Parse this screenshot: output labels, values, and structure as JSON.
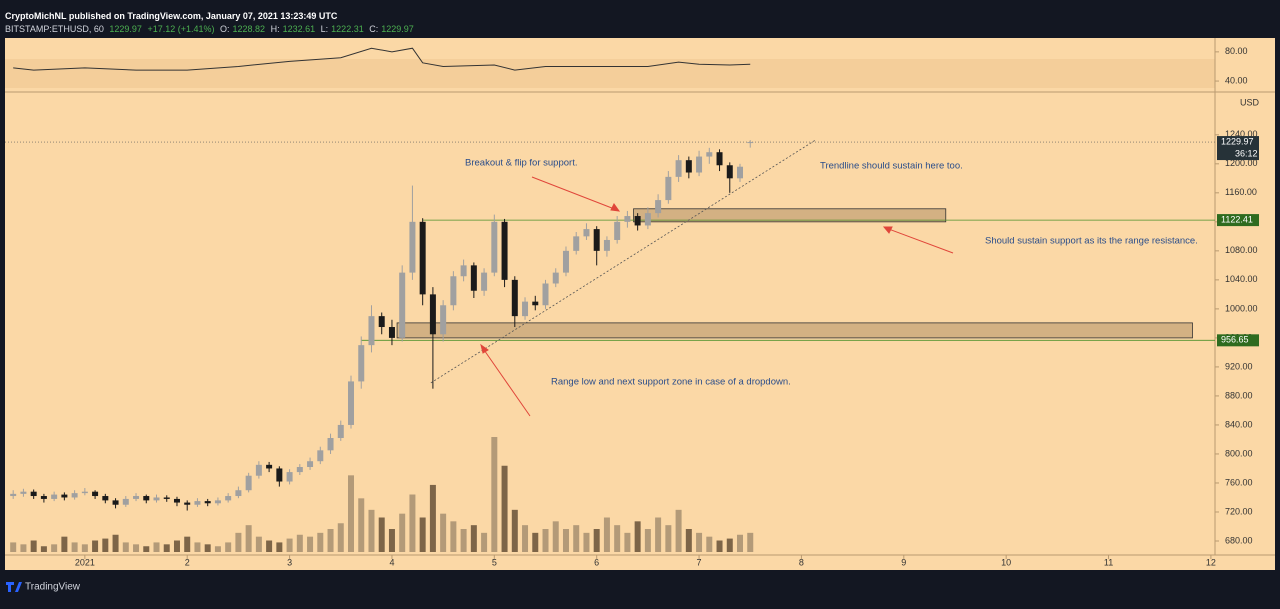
{
  "header": {
    "publisher": "CryptoMichNL published on TradingView.com, January 07, 2021 13:23:49 UTC",
    "symbol": "BITSTAMP:ETHUSD, 60",
    "last": "1229.97",
    "change": "+17.12 (+1.41%)",
    "ohlc": [
      {
        "label": "O:",
        "value": "1228.82"
      },
      {
        "label": "H:",
        "value": "1232.61"
      },
      {
        "label": "L:",
        "value": "1222.31"
      },
      {
        "label": "C:",
        "value": "1229.97"
      }
    ]
  },
  "footer": "TradingView",
  "chart_data": {
    "type": "candlestick",
    "x": [
      0.3,
      0.4,
      0.5,
      0.6,
      0.7,
      0.8,
      0.9,
      1.0,
      1.1,
      1.2,
      1.3,
      1.4,
      1.5,
      1.6,
      1.7,
      1.8,
      1.9,
      2.0,
      2.1,
      2.2,
      2.3,
      2.4,
      2.5,
      2.6,
      2.7,
      2.8,
      2.9,
      3.0,
      3.1,
      3.2,
      3.3,
      3.4,
      3.5,
      3.6,
      3.7,
      3.8,
      3.9,
      4.0,
      4.1,
      4.2,
      4.3,
      4.4,
      4.5,
      4.6,
      4.7,
      4.8,
      4.9,
      5.0,
      5.1,
      5.2,
      5.3,
      5.4,
      5.5,
      5.6,
      5.7,
      5.8,
      5.9,
      6.0,
      6.1,
      6.2,
      6.3,
      6.4,
      6.5,
      6.6,
      6.7,
      6.8,
      6.9,
      7.0,
      7.1,
      7.2,
      7.3,
      7.4,
      7.5
    ],
    "open": [
      742,
      745,
      748,
      742,
      738,
      744,
      740,
      746,
      748,
      742,
      736,
      730,
      738,
      742,
      736,
      740,
      738,
      733,
      730,
      735,
      732,
      736,
      742,
      750,
      770,
      785,
      780,
      762,
      775,
      782,
      790,
      805,
      822,
      840,
      900,
      950,
      990,
      975,
      960,
      1050,
      1120,
      1020,
      965,
      1005,
      1045,
      1060,
      1025,
      1050,
      1120,
      1040,
      990,
      1010,
      1005,
      1035,
      1050,
      1080,
      1100,
      1110,
      1080,
      1095,
      1120,
      1128,
      1115,
      1132,
      1150,
      1182,
      1205,
      1188,
      1210,
      1216,
      1198,
      1180,
      1228.82
    ],
    "high": [
      750,
      752,
      751,
      745,
      748,
      747,
      750,
      753,
      750,
      745,
      739,
      742,
      746,
      744,
      744,
      743,
      741,
      736,
      739,
      738,
      740,
      746,
      755,
      774,
      790,
      789,
      783,
      779,
      786,
      795,
      810,
      828,
      846,
      908,
      962,
      1005,
      995,
      985,
      1060,
      1170,
      1125,
      1030,
      1012,
      1052,
      1068,
      1064,
      1056,
      1130,
      1124,
      1045,
      1016,
      1018,
      1040,
      1056,
      1086,
      1106,
      1118,
      1114,
      1100,
      1128,
      1135,
      1132,
      1140,
      1158,
      1190,
      1212,
      1210,
      1218,
      1222,
      1220,
      1202,
      1200,
      1232.61
    ],
    "low": [
      738,
      741,
      738,
      733,
      735,
      736,
      737,
      743,
      738,
      732,
      725,
      727,
      735,
      732,
      733,
      734,
      728,
      722,
      727,
      728,
      729,
      733,
      739,
      747,
      766,
      775,
      755,
      758,
      771,
      778,
      786,
      800,
      818,
      835,
      890,
      940,
      965,
      950,
      955,
      1040,
      1005,
      890,
      955,
      998,
      1038,
      1015,
      1018,
      1045,
      1030,
      975,
      985,
      998,
      1000,
      1030,
      1045,
      1075,
      1095,
      1060,
      1072,
      1090,
      1112,
      1108,
      1110,
      1126,
      1145,
      1175,
      1180,
      1183,
      1200,
      1190,
      1160,
      1175,
      1222.31
    ],
    "close": [
      745,
      748,
      742,
      738,
      744,
      740,
      746,
      748,
      742,
      736,
      730,
      738,
      742,
      736,
      740,
      738,
      733,
      730,
      735,
      732,
      736,
      742,
      750,
      770,
      785,
      780,
      762,
      775,
      782,
      790,
      805,
      822,
      840,
      900,
      950,
      990,
      975,
      960,
      1050,
      1120,
      1020,
      965,
      1005,
      1045,
      1060,
      1025,
      1050,
      1120,
      1040,
      990,
      1010,
      1005,
      1035,
      1050,
      1080,
      1100,
      1110,
      1080,
      1095,
      1120,
      1128,
      1115,
      1132,
      1150,
      1182,
      1205,
      1188,
      1210,
      1216,
      1198,
      1180,
      1196,
      1229.97
    ],
    "volume": [
      5,
      4,
      6,
      3,
      4,
      8,
      5,
      4,
      6,
      7,
      9,
      5,
      4,
      3,
      5,
      4,
      6,
      8,
      5,
      4,
      3,
      5,
      10,
      14,
      8,
      6,
      5,
      7,
      9,
      8,
      10,
      12,
      15,
      40,
      28,
      22,
      18,
      12,
      20,
      30,
      18,
      35,
      20,
      16,
      12,
      14,
      10,
      60,
      45,
      22,
      14,
      10,
      12,
      16,
      12,
      14,
      10,
      12,
      18,
      14,
      10,
      16,
      12,
      18,
      14,
      22,
      12,
      10,
      8,
      6,
      7,
      9,
      10
    ],
    "xlim": [
      0.22,
      12.04
    ],
    "xticks": [
      {
        "value": 1,
        "label": "2021"
      },
      2,
      3,
      4,
      5,
      6,
      7,
      8,
      9,
      10,
      11,
      12
    ],
    "ylim": [
      660.7,
      1299
    ],
    "yticks": [
      {
        "value": 680,
        "label": "680.00"
      },
      {
        "value": 720,
        "label": "720.00"
      },
      {
        "value": 760,
        "label": "760.00"
      },
      {
        "value": 800,
        "label": "800.00"
      },
      {
        "value": 840,
        "label": "840.00"
      },
      {
        "value": 880,
        "label": "880.00"
      },
      {
        "value": 920,
        "label": "920.00"
      },
      {
        "value": 960,
        "label": "960.00"
      },
      {
        "value": 1000,
        "label": "1000.00"
      },
      {
        "value": 1040,
        "label": "1040.00"
      },
      {
        "value": 1080,
        "label": "1080.00"
      },
      {
        "value": 1120,
        "label": "1120.00"
      },
      {
        "value": 1160,
        "label": "1160.00"
      },
      {
        "value": 1200,
        "label": "1200.00"
      },
      {
        "value": 1240,
        "label": "1240.00"
      }
    ],
    "y_axis_label": "USD",
    "rsi": {
      "x": [
        0.3,
        0.5,
        1.0,
        1.5,
        2.0,
        2.5,
        3.0,
        3.5,
        3.8,
        4.0,
        4.2,
        4.3,
        4.5,
        5.0,
        5.2,
        5.5,
        6.0,
        6.5,
        6.8,
        7.0,
        7.3,
        7.5
      ],
      "values": [
        58,
        55,
        58,
        55,
        55,
        60,
        67,
        72,
        85,
        80,
        85,
        65,
        60,
        62,
        55,
        60,
        60,
        60,
        66,
        63,
        62,
        63
      ],
      "ylim": [
        25,
        99
      ],
      "yticks": [
        {
          "value": 80,
          "label": "80.00"
        },
        {
          "value": 40,
          "label": "40.00"
        }
      ]
    },
    "levels": [
      {
        "value": 1122.41,
        "x_start": 4.3
      },
      {
        "value": 956.65,
        "x_start": 3.7
      }
    ],
    "price_tag": {
      "value": 1229.97,
      "countdown": "36:12"
    },
    "zones": [
      {
        "x": [
          6.36,
          9.41
        ],
        "y": [
          1120,
          1138
        ]
      },
      {
        "x": [
          4.05,
          11.82
        ],
        "y": [
          960,
          980.7
        ]
      }
    ],
    "trendline": {
      "x": [
        4.38,
        8.14
      ],
      "y": [
        898,
        1233
      ]
    },
    "annotations": [
      "Breakout & flip for support.",
      "Trendline should sustain here too.",
      "Should sustain support as its the range resistance.",
      "Range low and next support zone in case of a dropdown."
    ]
  }
}
